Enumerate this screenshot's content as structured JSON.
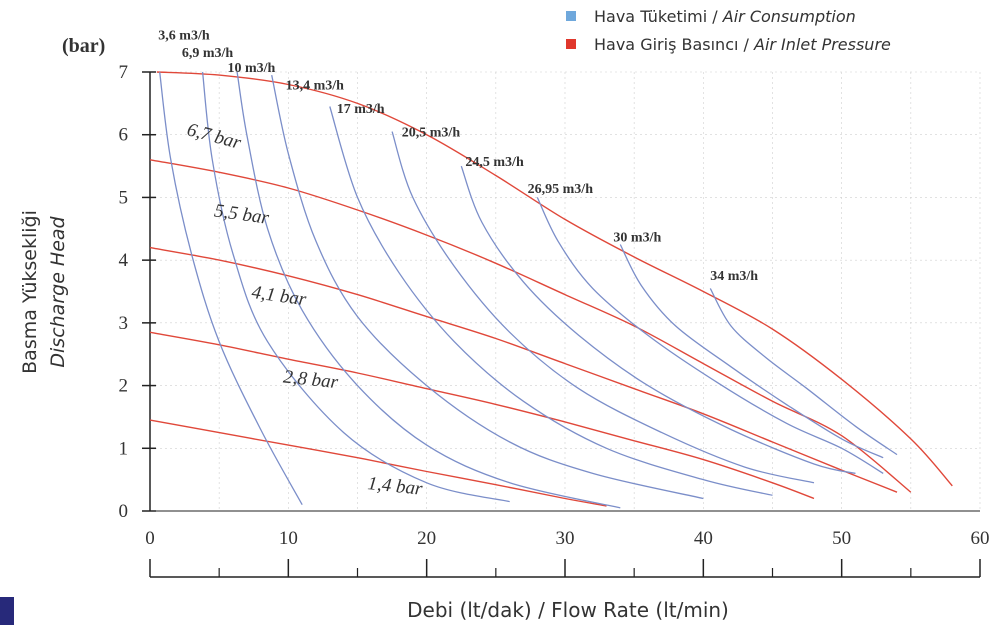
{
  "colors": {
    "air_consumption": "#7b8ec9",
    "air_inlet_pressure": "#e0483a",
    "legend_blue": "#6fa8dc",
    "legend_red": "#e0372c",
    "axis": "#222222",
    "grid": "#d0d0d0",
    "corner_mark": "#27297a"
  },
  "legend": {
    "air_consumption": {
      "label_tr": "Hava Tüketimi",
      "separator": " / ",
      "label_en": "Air Consumption"
    },
    "air_inlet_pressure": {
      "label_tr": "Hava Giriş Basıncı",
      "separator": " / ",
      "label_en": "Air Inlet Pressure"
    }
  },
  "chart_data": {
    "type": "line",
    "y_unit": "(bar)",
    "ylabel_tr": "Basma Yüksekliği",
    "ylabel_en": "Discharge Head",
    "xlabel": "Debi (lt/dak) / Flow Rate (lt/min)",
    "xlim": [
      0,
      60
    ],
    "ylim": [
      0,
      7
    ],
    "x_ticks": [
      "0",
      "10",
      "20",
      "30",
      "40",
      "50",
      "60"
    ],
    "y_ticks": [
      "0",
      "1",
      "2",
      "3",
      "4",
      "5",
      "6",
      "7"
    ],
    "grid": true,
    "legend_position": "top-right",
    "air_inlet_pressure_series": [
      {
        "name": "6,7 bar",
        "points": [
          [
            0.5,
            7.0
          ],
          [
            5,
            6.95
          ],
          [
            10,
            6.8
          ],
          [
            15,
            6.5
          ],
          [
            20,
            6.0
          ],
          [
            25,
            5.35
          ],
          [
            30,
            4.65
          ],
          [
            35,
            4.05
          ],
          [
            40,
            3.5
          ],
          [
            45,
            2.9
          ],
          [
            50,
            2.1
          ],
          [
            55,
            1.15
          ],
          [
            58,
            0.4
          ]
        ]
      },
      {
        "name": "5,5 bar",
        "points": [
          [
            0,
            5.6
          ],
          [
            5,
            5.4
          ],
          [
            10,
            5.15
          ],
          [
            15,
            4.8
          ],
          [
            20,
            4.4
          ],
          [
            25,
            3.95
          ],
          [
            30,
            3.45
          ],
          [
            35,
            2.95
          ],
          [
            40,
            2.35
          ],
          [
            45,
            1.75
          ],
          [
            50,
            1.2
          ],
          [
            55,
            0.3
          ]
        ]
      },
      {
        "name": "4,1 bar",
        "points": [
          [
            0,
            4.2
          ],
          [
            5,
            4.0
          ],
          [
            10,
            3.75
          ],
          [
            15,
            3.45
          ],
          [
            20,
            3.1
          ],
          [
            25,
            2.75
          ],
          [
            30,
            2.35
          ],
          [
            35,
            1.95
          ],
          [
            40,
            1.55
          ],
          [
            45,
            1.1
          ],
          [
            50,
            0.65
          ],
          [
            54,
            0.3
          ]
        ]
      },
      {
        "name": "2,8 bar",
        "points": [
          [
            0,
            2.85
          ],
          [
            5,
            2.65
          ],
          [
            10,
            2.42
          ],
          [
            15,
            2.2
          ],
          [
            20,
            1.95
          ],
          [
            25,
            1.7
          ],
          [
            30,
            1.42
          ],
          [
            35,
            1.12
          ],
          [
            40,
            0.82
          ],
          [
            45,
            0.45
          ],
          [
            48,
            0.2
          ]
        ]
      },
      {
        "name": "1,4 bar",
        "points": [
          [
            0,
            1.45
          ],
          [
            5,
            1.25
          ],
          [
            10,
            1.05
          ],
          [
            15,
            0.85
          ],
          [
            20,
            0.63
          ],
          [
            25,
            0.42
          ],
          [
            30,
            0.2
          ],
          [
            33,
            0.08
          ]
        ]
      }
    ],
    "air_consumption_series": [
      {
        "name": "3,6 m3/h",
        "points": [
          [
            0.7,
            7.0
          ],
          [
            1.5,
            5.6
          ],
          [
            3,
            4.1
          ],
          [
            5,
            2.7
          ],
          [
            8,
            1.3
          ],
          [
            11,
            0.1
          ]
        ]
      },
      {
        "name": "6,9 m3/h",
        "points": [
          [
            3.8,
            7.0
          ],
          [
            4.5,
            5.6
          ],
          [
            6,
            4.1
          ],
          [
            8.5,
            2.7
          ],
          [
            14,
            1.25
          ],
          [
            20,
            0.45
          ],
          [
            26,
            0.15
          ]
        ]
      },
      {
        "name": "10 m3/h",
        "points": [
          [
            6.3,
            7.0
          ],
          [
            7,
            6.0
          ],
          [
            8.5,
            4.5
          ],
          [
            11,
            3.2
          ],
          [
            15,
            2.0
          ],
          [
            20,
            1.05
          ],
          [
            26,
            0.45
          ],
          [
            34,
            0.05
          ]
        ]
      },
      {
        "name": "13,4 m3/h",
        "points": [
          [
            8.8,
            6.95
          ],
          [
            10,
            5.7
          ],
          [
            12,
            4.3
          ],
          [
            15,
            3.1
          ],
          [
            20,
            2.0
          ],
          [
            26,
            1.1
          ],
          [
            32,
            0.6
          ],
          [
            40,
            0.2
          ]
        ]
      },
      {
        "name": "17 m3/h",
        "points": [
          [
            13,
            6.45
          ],
          [
            15,
            5.0
          ],
          [
            18,
            3.8
          ],
          [
            22,
            2.7
          ],
          [
            27,
            1.75
          ],
          [
            33,
            1.0
          ],
          [
            40,
            0.5
          ],
          [
            45,
            0.25
          ]
        ]
      },
      {
        "name": "20,5 m3/h",
        "points": [
          [
            17.5,
            6.05
          ],
          [
            19,
            5.0
          ],
          [
            22,
            3.9
          ],
          [
            26,
            2.85
          ],
          [
            31,
            1.95
          ],
          [
            37,
            1.25
          ],
          [
            43,
            0.7
          ],
          [
            48,
            0.45
          ]
        ]
      },
      {
        "name": "24,5 m3/h",
        "points": [
          [
            22.5,
            5.5
          ],
          [
            24,
            4.6
          ],
          [
            27,
            3.65
          ],
          [
            31,
            2.8
          ],
          [
            36,
            2.0
          ],
          [
            42,
            1.3
          ],
          [
            48,
            0.75
          ],
          [
            51,
            0.6
          ]
        ]
      },
      {
        "name": "26,95 m3/h",
        "points": [
          [
            28,
            5.0
          ],
          [
            29.5,
            4.3
          ],
          [
            32,
            3.55
          ],
          [
            36,
            2.8
          ],
          [
            41,
            2.05
          ],
          [
            46,
            1.4
          ],
          [
            50,
            1.0
          ],
          [
            53,
            0.6
          ]
        ]
      },
      {
        "name": "30 m3/h",
        "points": [
          [
            34,
            4.25
          ],
          [
            35.5,
            3.6
          ],
          [
            38,
            2.95
          ],
          [
            42,
            2.3
          ],
          [
            46,
            1.7
          ],
          [
            50,
            1.15
          ],
          [
            53,
            0.85
          ]
        ]
      },
      {
        "name": "34 m3/h",
        "points": [
          [
            40.5,
            3.55
          ],
          [
            42,
            2.95
          ],
          [
            44.5,
            2.45
          ],
          [
            47.5,
            1.95
          ],
          [
            51,
            1.35
          ],
          [
            54,
            0.9
          ]
        ]
      }
    ]
  }
}
